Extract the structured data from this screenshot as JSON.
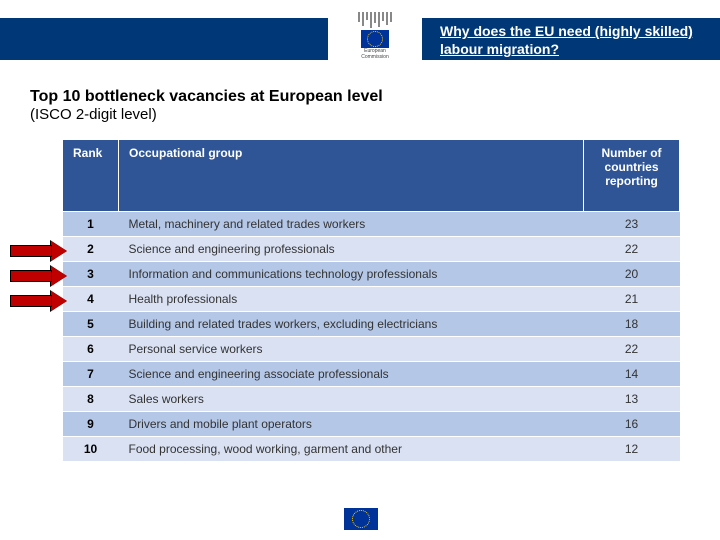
{
  "header": {
    "title": "Why does the EU need (highly skilled) labour migration?",
    "logo_line1": "European",
    "logo_line2": "Commission"
  },
  "title": {
    "main": "Top 10 bottleneck vacancies at European level",
    "sub": "(ISCO 2-digit level)"
  },
  "table": {
    "columns": {
      "rank": "Rank",
      "group": "Occupational group",
      "num": "Number of countries reporting"
    },
    "rows": [
      {
        "rank": "1",
        "group": "Metal, machinery and related trades workers",
        "num": "23"
      },
      {
        "rank": "2",
        "group": "Science and engineering professionals",
        "num": "22"
      },
      {
        "rank": "3",
        "group": "Information and communications technology professionals",
        "num": "20"
      },
      {
        "rank": "4",
        "group": "Health professionals",
        "num": "21"
      },
      {
        "rank": "5",
        "group": "Building and related trades workers, excluding electricians",
        "num": "18"
      },
      {
        "rank": "6",
        "group": "Personal service workers",
        "num": "22"
      },
      {
        "rank": "7",
        "group": "Science and engineering associate professionals",
        "num": "14"
      },
      {
        "rank": "8",
        "group": "Sales workers",
        "num": "13"
      },
      {
        "rank": "9",
        "group": "Drivers and mobile plant operators",
        "num": "16"
      },
      {
        "rank": "10",
        "group": "Food processing, wood working, garment and other",
        "num": "12"
      }
    ],
    "highlighted_rows": [
      1,
      2,
      3
    ]
  },
  "colors": {
    "header_bg": "#003776",
    "table_header_bg": "#2f5597",
    "row_odd_bg": "#b4c7e7",
    "row_even_bg": "#d9e1f2",
    "arrow_fill": "#c00000",
    "flag_bg": "#003399"
  }
}
